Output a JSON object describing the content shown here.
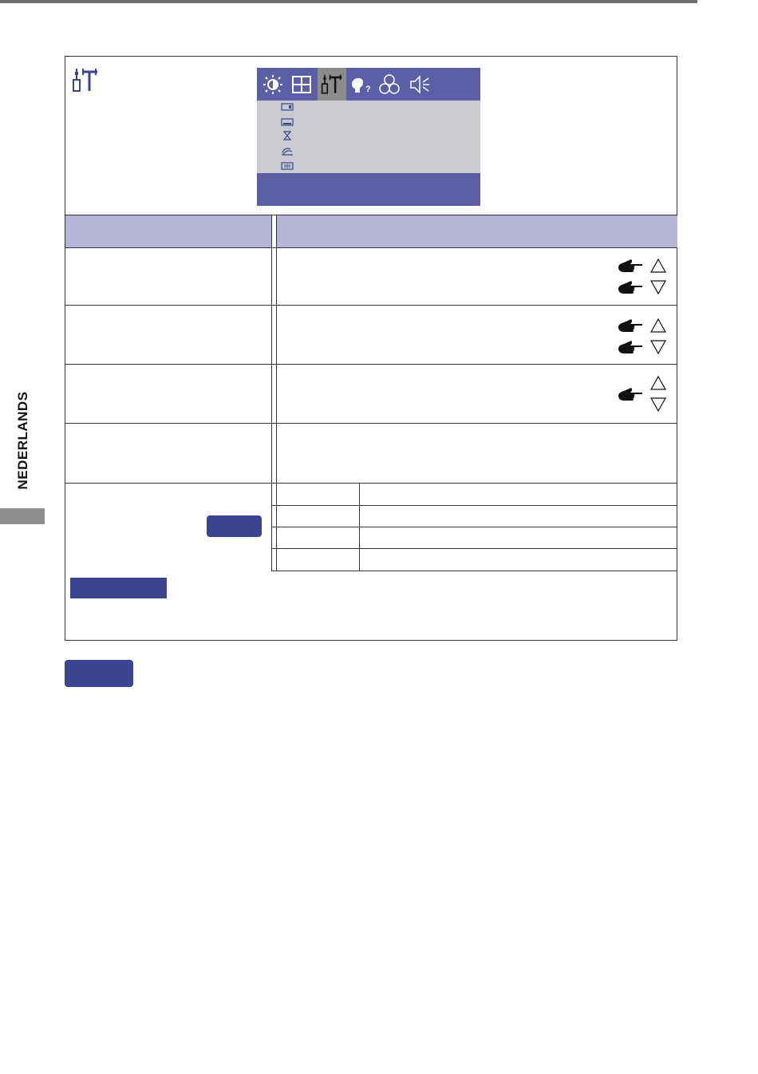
{
  "side_label": "NEDERLANDS",
  "colors": {
    "accent": "#3a4491",
    "osd_bar": "#5a5fa6",
    "osd_body": "#c9cbd0",
    "header_row": "#b4b5d7"
  },
  "osd": {
    "tabs": [
      "brightness-icon",
      "display-icon",
      "setup-icon",
      "help-icon",
      "color-icon",
      "audio-icon"
    ],
    "active_tab": "setup-icon",
    "items": [
      "osd-position-icon",
      "osd-h-position-icon",
      "timer-icon",
      "language-icon",
      "menu-icon"
    ]
  },
  "table": {
    "rows_with_arrows": 3,
    "sub_rows": 4
  }
}
